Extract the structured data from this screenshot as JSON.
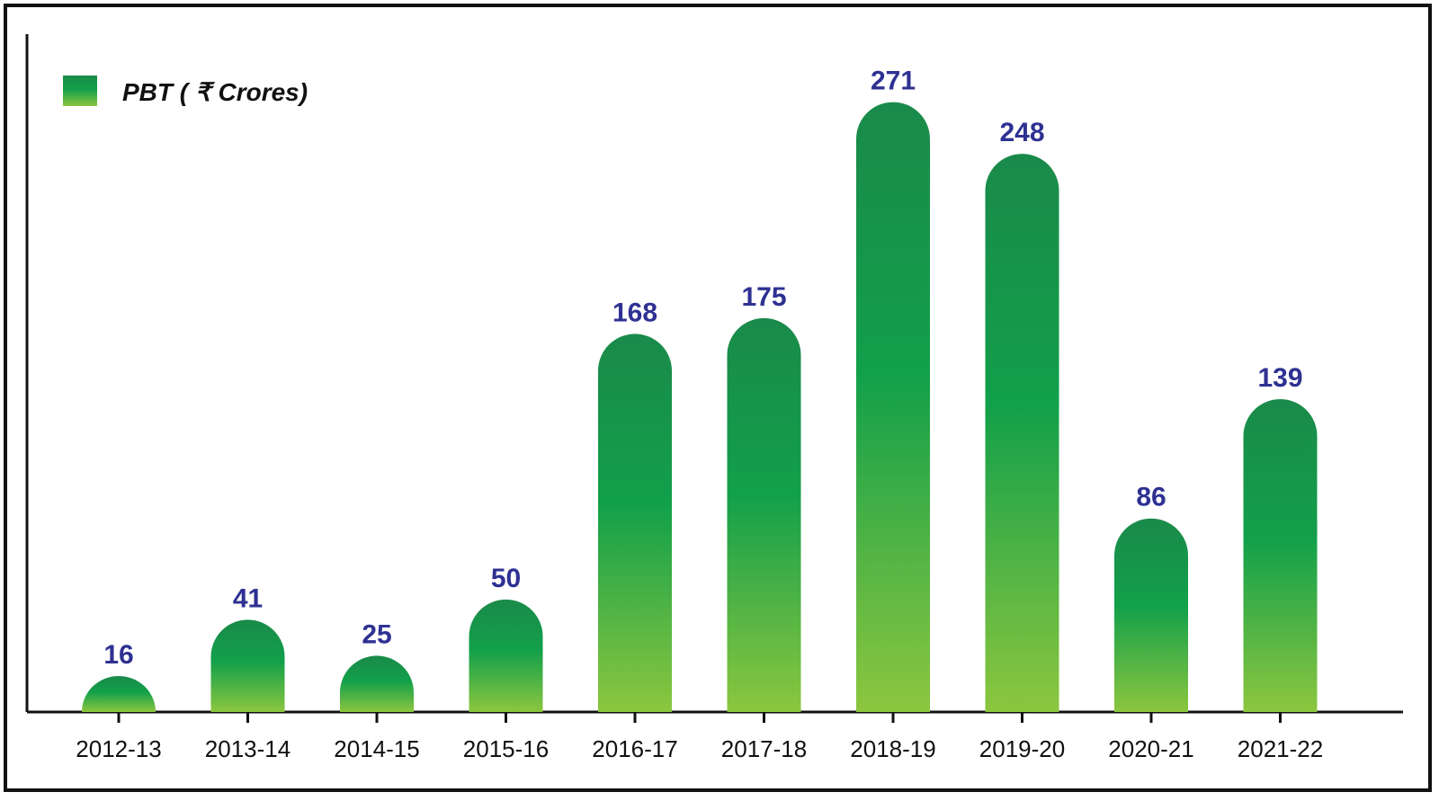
{
  "chart_data": {
    "type": "bar",
    "categories": [
      "2012-13",
      "2013-14",
      "2014-15",
      "2015-16",
      "2016-17",
      "2017-18",
      "2018-19",
      "2019-20",
      "2020-21",
      "2021-22"
    ],
    "series": [
      {
        "name": "PBT ( ₹ Crores)",
        "values": [
          16,
          41,
          25,
          50,
          168,
          175,
          271,
          248,
          86,
          139
        ]
      }
    ],
    "title": "",
    "xlabel": "",
    "ylabel": "",
    "ylim": [
      0,
      290
    ],
    "grid": false,
    "legend_position": "top-left",
    "data_labels": true,
    "colors": {
      "bar_top": "#1a8a4a",
      "bar_mid": "#12a04a",
      "bar_bottom": "#8cc63f",
      "label_text": "#2e3192",
      "axis": "#111111"
    }
  }
}
